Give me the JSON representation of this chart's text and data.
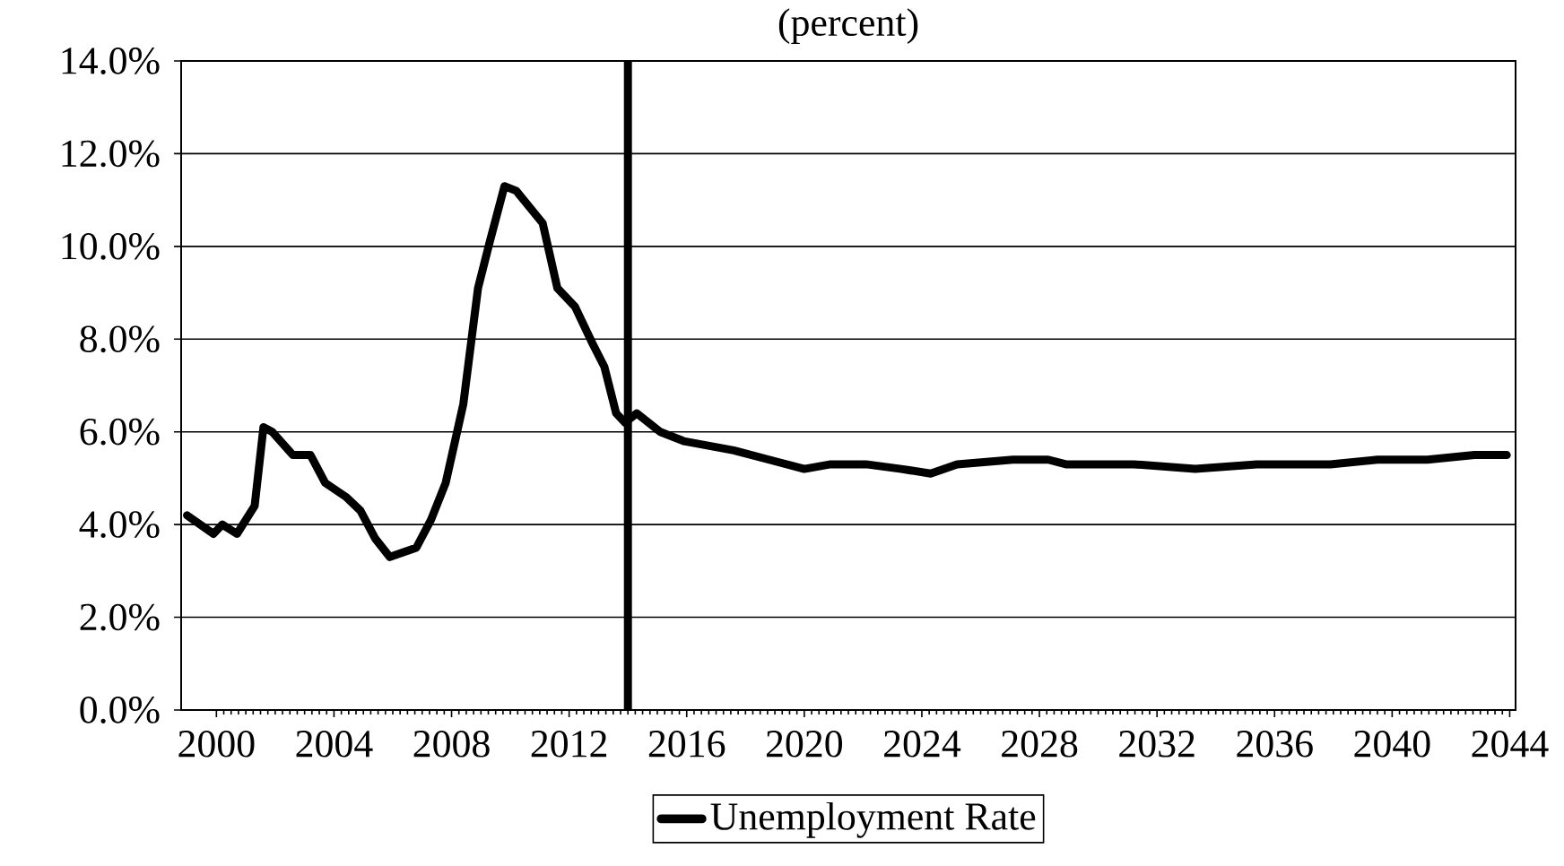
{
  "chart_data": {
    "type": "line",
    "title": "(percent)",
    "series": [
      {
        "name": "Unemployment Rate",
        "color": "#000000",
        "x": [
          1999.0,
          1999.9,
          2000.2,
          2000.7,
          2001.3,
          2001.6,
          2001.9,
          2002.6,
          2003.2,
          2003.7,
          2004.4,
          2004.9,
          2005.4,
          2005.9,
          2006.8,
          2007.3,
          2007.8,
          2008.4,
          2008.9,
          2009.3,
          2009.8,
          2010.2,
          2011.1,
          2011.6,
          2012.2,
          2012.8,
          2013.2,
          2013.6,
          2013.9,
          2014.3,
          2015.1,
          2015.9,
          2017.6,
          2018.8,
          2020.0,
          2020.9,
          2022.1,
          2023.3,
          2024.3,
          2025.2,
          2027.1,
          2028.3,
          2028.9,
          2031.2,
          2033.3,
          2035.4,
          2037.9,
          2039.5,
          2041.2,
          2042.8,
          2043.9
        ],
        "values": [
          4.2,
          3.8,
          4.0,
          3.8,
          4.4,
          6.1,
          6.0,
          5.5,
          5.5,
          4.9,
          4.6,
          4.3,
          3.7,
          3.3,
          3.5,
          4.1,
          4.9,
          6.6,
          9.1,
          10.1,
          11.3,
          11.2,
          10.5,
          9.1,
          8.7,
          7.9,
          7.4,
          6.4,
          6.2,
          6.4,
          6.0,
          5.8,
          5.6,
          5.4,
          5.2,
          5.3,
          5.3,
          5.2,
          5.1,
          5.3,
          5.4,
          5.4,
          5.3,
          5.3,
          5.2,
          5.3,
          5.3,
          5.4,
          5.4,
          5.5,
          5.5
        ]
      }
    ],
    "xlim": [
      1998.8,
      2044.2
    ],
    "xticks": [
      2000,
      2004,
      2008,
      2012,
      2016,
      2020,
      2024,
      2028,
      2032,
      2036,
      2040,
      2044
    ],
    "ylim": [
      0,
      14
    ],
    "yticks": [
      {
        "value": 0,
        "label": "0.0%"
      },
      {
        "value": 2,
        "label": "2.0%"
      },
      {
        "value": 4,
        "label": "4.0%"
      },
      {
        "value": 6,
        "label": "6.0%"
      },
      {
        "value": 8,
        "label": "8.0%"
      },
      {
        "value": 10,
        "label": "10.0%"
      },
      {
        "value": 12,
        "label": "12.0%"
      },
      {
        "value": 14,
        "label": "14.0%"
      }
    ],
    "ref_lines": [
      {
        "axis": "x",
        "value": 2014,
        "color": "#000000"
      }
    ],
    "grid": "y",
    "legend": "bottom",
    "marker": "none",
    "line_style": "solid"
  }
}
